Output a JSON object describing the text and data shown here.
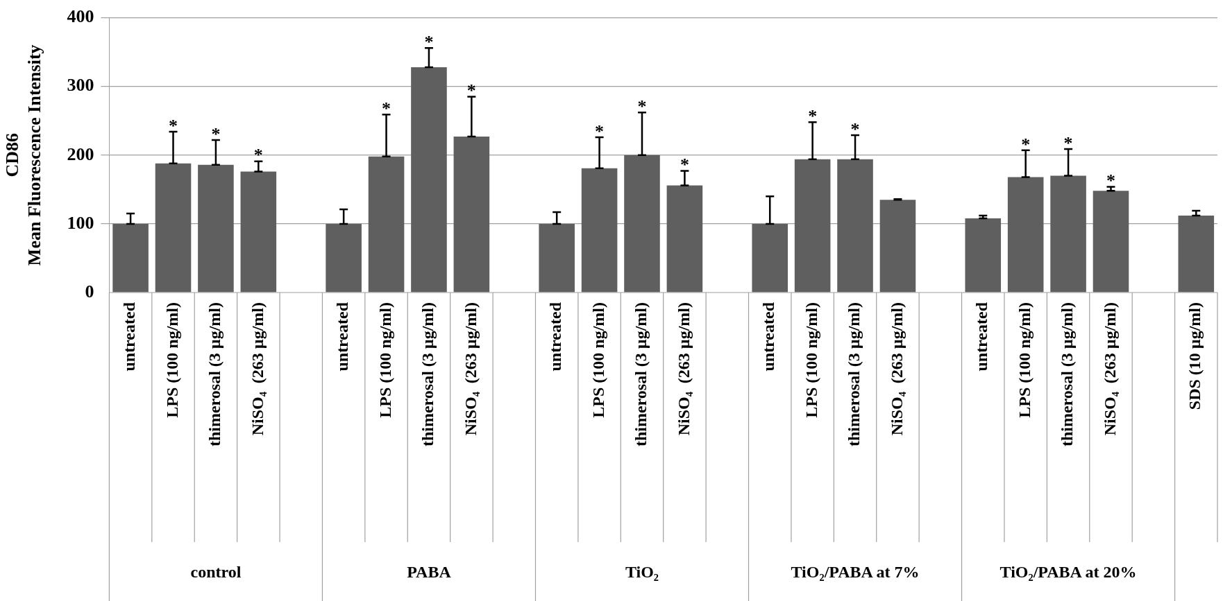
{
  "chart_data": {
    "type": "bar",
    "ylabel": "CD86\nMean Fluorescence Intensity",
    "categories": [
      "untreated",
      "LPS (100 ng/ml)",
      "thimerosal (3 µg/ml)",
      "NiSO₄  (263 µg/ml)",
      null,
      "untreated",
      "LPS (100 ng/ml)",
      "thimerosal (3 µg/ml)",
      "NiSO₄  (263 µg/ml)",
      null,
      "untreated",
      "LPS (100 ng/ml)",
      "thimerosal (3 µg/ml)",
      "NiSO₄  (263 µg/ml)",
      null,
      "untreated",
      "LPS (100 ng/ml)",
      "thimerosal (3 µg/ml)",
      "NiSO₄  (263 µg/ml)",
      null,
      "untreated",
      "LPS (100 ng/ml)",
      "thimerosal (3 µg/ml)",
      "NiSO₄  (263 µg/ml)",
      null,
      "SDS (10 µg/ml)"
    ],
    "values": [
      100,
      188,
      186,
      176,
      0,
      100,
      198,
      328,
      227,
      null,
      100,
      181,
      200,
      156,
      0,
      100,
      194,
      194,
      135,
      0,
      108,
      168,
      170,
      148,
      null,
      112
    ],
    "errors": [
      [
        100,
        115
      ],
      [
        188,
        234
      ],
      [
        186,
        222
      ],
      [
        176,
        191
      ],
      null,
      [
        100,
        121
      ],
      [
        198,
        259
      ],
      [
        328,
        356
      ],
      [
        227,
        285
      ],
      null,
      [
        100,
        117
      ],
      [
        181,
        226
      ],
      [
        200,
        262
      ],
      [
        156,
        177
      ],
      null,
      [
        100,
        140
      ],
      [
        194,
        248
      ],
      [
        194,
        229
      ],
      [
        135,
        136
      ],
      null,
      [
        108,
        112
      ],
      [
        168,
        207
      ],
      [
        170,
        209
      ],
      [
        148,
        154
      ],
      null,
      [
        112,
        119
      ]
    ],
    "value_labels": [
      null,
      "*",
      "*",
      "*",
      null,
      null,
      "*",
      "*",
      "*",
      null,
      null,
      "*",
      "*",
      "*",
      null,
      null,
      "*",
      "*",
      null,
      null,
      null,
      "*",
      "*",
      "*",
      null,
      null
    ],
    "annotations": [
      "control",
      "PABA",
      "TiO₂",
      "TiO₂/PABA at 7%",
      "TiO₂/PABA at 20%"
    ],
    "color": "#5f5f5f",
    "ylim": [
      0,
      400
    ],
    "yticks": [
      0,
      100,
      200,
      300,
      400
    ],
    "grid": "y",
    "legend": false
  }
}
